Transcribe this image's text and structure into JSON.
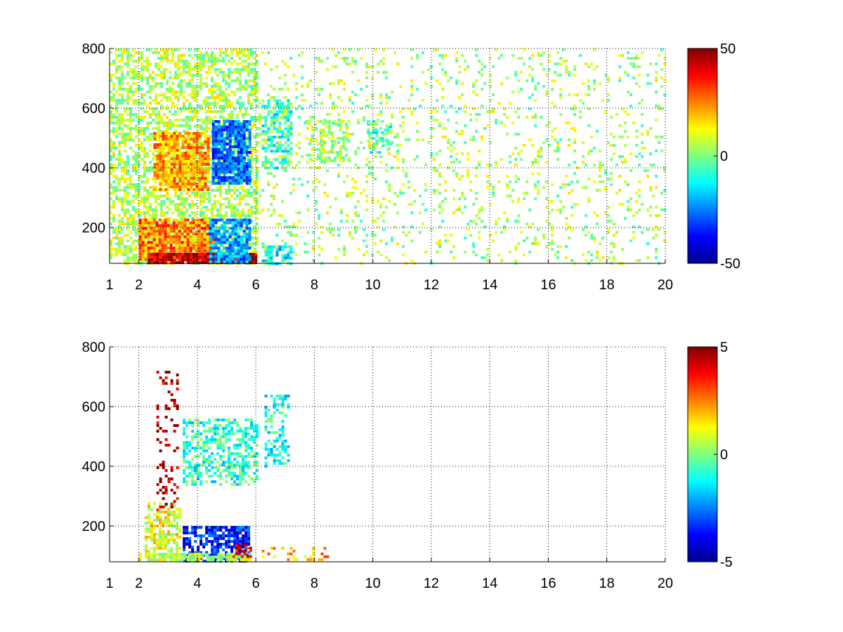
{
  "chart_data": [
    {
      "type": "heatmap",
      "title": "",
      "xlabel": "",
      "ylabel": "",
      "xlim": [
        1,
        20
      ],
      "ylim": [
        80,
        800
      ],
      "x_ticks": [
        1,
        2,
        4,
        6,
        8,
        10,
        12,
        14,
        16,
        18,
        20
      ],
      "x_tick_labels": [
        "1",
        "2",
        "4",
        "6",
        "8",
        "10",
        "12",
        "14",
        "16",
        "18",
        "20"
      ],
      "y_ticks": [
        200,
        400,
        600,
        800
      ],
      "y_tick_labels": [
        "200",
        "400",
        "600",
        "800"
      ],
      "grid": true,
      "colormap": "jet",
      "colorbar": {
        "range": [
          -50,
          50
        ],
        "ticks": [
          -50,
          0,
          50
        ],
        "tick_labels": [
          "-50",
          "0",
          "50"
        ]
      },
      "features": [
        {
          "x": [
            1.0,
            6.0
          ],
          "y": [
            80,
            800
          ],
          "value": 5,
          "density": 0.55,
          "note": "broad yellow-green band"
        },
        {
          "x": [
            2.5,
            4.4
          ],
          "y": [
            330,
            520
          ],
          "value": 22,
          "density": 0.85
        },
        {
          "x": [
            4.5,
            5.8
          ],
          "y": [
            350,
            560
          ],
          "value": -28,
          "density": 0.85
        },
        {
          "x": [
            2.0,
            4.5
          ],
          "y": [
            90,
            230
          ],
          "value": 25,
          "density": 0.9
        },
        {
          "x": [
            2.3,
            6.0
          ],
          "y": [
            85,
            115
          ],
          "value": 45,
          "density": 0.95
        },
        {
          "x": [
            4.4,
            5.8
          ],
          "y": [
            80,
            230
          ],
          "value": -22,
          "density": 0.8
        },
        {
          "x": [
            6.2,
            7.2
          ],
          "y": [
            400,
            630
          ],
          "value": -8,
          "density": 0.6
        },
        {
          "x": [
            6.2,
            7.2
          ],
          "y": [
            80,
            140
          ],
          "value": -15,
          "density": 0.6
        },
        {
          "x": [
            7.7,
            9.2
          ],
          "y": [
            420,
            560
          ],
          "value": 3,
          "density": 0.4
        },
        {
          "x": [
            9.8,
            10.6
          ],
          "y": [
            450,
            560
          ],
          "value": -5,
          "density": 0.4
        },
        {
          "x": [
            6.0,
            20.0
          ],
          "y": [
            80,
            800
          ],
          "value": 4,
          "density": 0.12,
          "note": "sparse scattered pixels"
        }
      ]
    },
    {
      "type": "heatmap",
      "title": "",
      "xlabel": "",
      "ylabel": "",
      "xlim": [
        1,
        20
      ],
      "ylim": [
        80,
        800
      ],
      "x_ticks": [
        1,
        2,
        4,
        6,
        8,
        10,
        12,
        14,
        16,
        18,
        20
      ],
      "x_tick_labels": [
        "1",
        "2",
        "4",
        "6",
        "8",
        "10",
        "12",
        "14",
        "16",
        "18",
        "20"
      ],
      "y_ticks": [
        200,
        400,
        600,
        800
      ],
      "y_tick_labels": [
        "200",
        "400",
        "600",
        "800"
      ],
      "grid": true,
      "colormap": "jet",
      "colorbar": {
        "range": [
          -5,
          5
        ],
        "ticks": [
          -5,
          0,
          5
        ],
        "tick_labels": [
          "-5",
          "0",
          "5"
        ]
      },
      "features": [
        {
          "x": [
            3.5,
            6.0
          ],
          "y": [
            340,
            560
          ],
          "value": -0.8,
          "density": 0.55
        },
        {
          "x": [
            2.2,
            3.4
          ],
          "y": [
            100,
            280
          ],
          "value": 1.0,
          "density": 0.6
        },
        {
          "x": [
            3.5,
            5.8
          ],
          "y": [
            85,
            200
          ],
          "value": -3.5,
          "density": 0.7
        },
        {
          "x": [
            2.0,
            5.8
          ],
          "y": [
            90,
            110
          ],
          "value": 0.5,
          "density": 0.8
        },
        {
          "x": [
            5.2,
            5.8
          ],
          "y": [
            100,
            140
          ],
          "value": 4.0,
          "density": 0.5
        },
        {
          "x": [
            2.6,
            3.3
          ],
          "y": [
            250,
            720
          ],
          "value": 4.5,
          "density": 0.2
        },
        {
          "x": [
            6.3,
            7.1
          ],
          "y": [
            400,
            640
          ],
          "value": -1.0,
          "density": 0.4
        },
        {
          "x": [
            6.2,
            8.5
          ],
          "y": [
            90,
            130
          ],
          "value": 2.0,
          "density": 0.3
        }
      ]
    }
  ]
}
